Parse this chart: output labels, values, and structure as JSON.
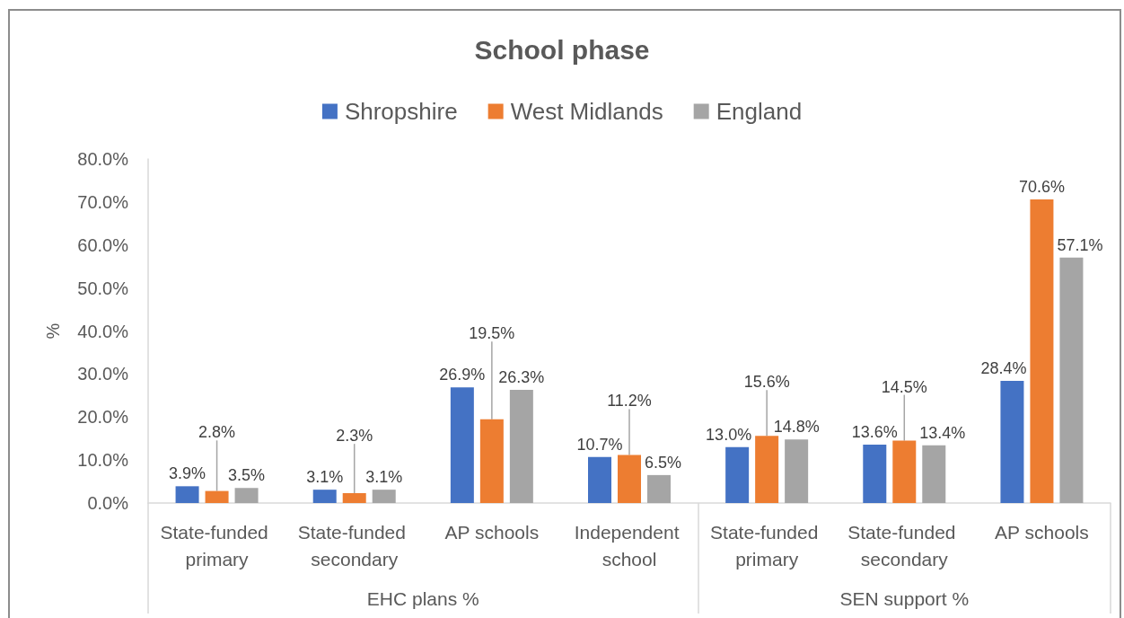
{
  "chart_data": {
    "type": "bar",
    "title": "School phase",
    "ylabel": "%",
    "categories": [
      "State-funded primary",
      "State-funded secondary",
      "AP schools",
      "Independent school",
      "State-funded primary",
      "State-funded secondary",
      "AP schools"
    ],
    "annotations": [
      "EHC plans %",
      "SEN support %"
    ],
    "series": [
      {
        "name": "Shropshire",
        "color": "#4472c4",
        "values": [
          3.9,
          3.1,
          26.9,
          10.7,
          13.0,
          13.6,
          28.4
        ],
        "value_labels": [
          "3.9%",
          "3.1%",
          "26.9%",
          "10.7%",
          "13.0%",
          "13.6%",
          "28.4%"
        ]
      },
      {
        "name": "West Midlands",
        "color": "#ed7d31",
        "values": [
          2.8,
          2.3,
          19.5,
          11.2,
          15.6,
          14.5,
          70.6
        ],
        "value_labels": [
          "2.8%",
          "2.3%",
          "19.5%",
          "11.2%",
          "15.6%",
          "14.5%",
          "70.6%"
        ]
      },
      {
        "name": "England",
        "color": "#a5a5a5",
        "values": [
          3.5,
          3.1,
          26.3,
          6.5,
          14.8,
          13.4,
          57.1
        ],
        "value_labels": [
          "3.5%",
          "3.1%",
          "26.3%",
          "6.5%",
          "14.8%",
          "13.4%",
          "57.1%"
        ]
      }
    ],
    "ylim": [
      0,
      80
    ],
    "yticks": [
      {
        "value": 0,
        "label": "0.0%"
      },
      {
        "value": 10,
        "label": "10.0%"
      },
      {
        "value": 20,
        "label": "20.0%"
      },
      {
        "value": 30,
        "label": "30.0%"
      },
      {
        "value": 40,
        "label": "40.0%"
      },
      {
        "value": 50,
        "label": "50.0%"
      },
      {
        "value": 60,
        "label": "60.0%"
      },
      {
        "value": 70,
        "label": "70.0%"
      },
      {
        "value": 80,
        "label": "80.0%"
      }
    ],
    "grid": false,
    "legend": "top"
  }
}
